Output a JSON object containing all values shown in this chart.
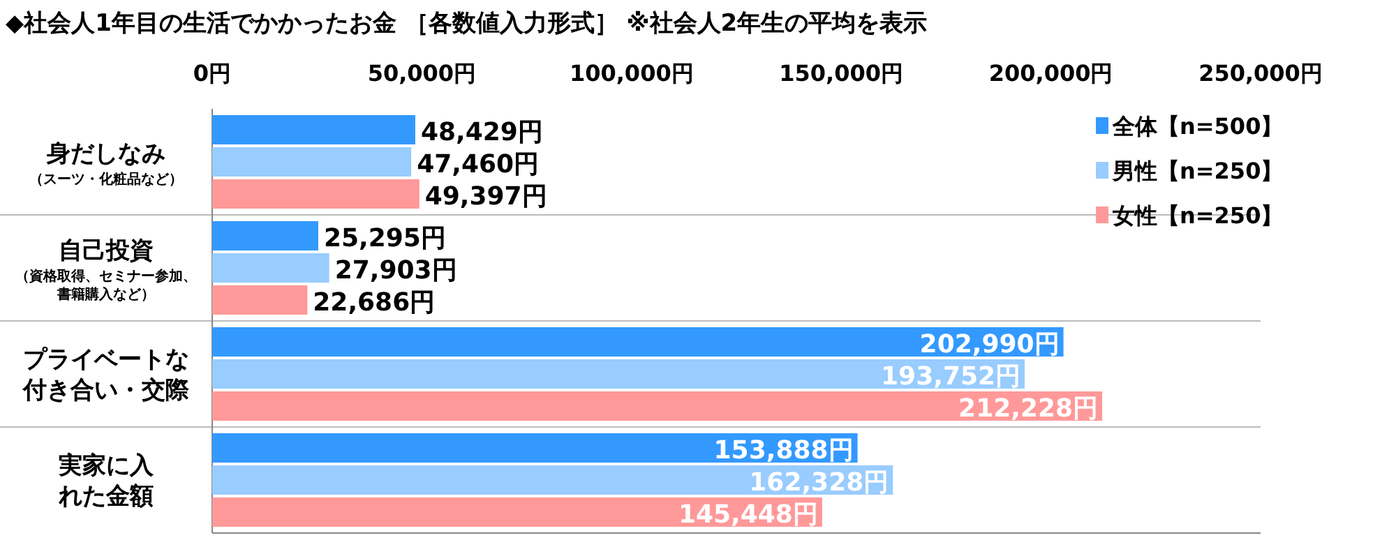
{
  "chart_data": {
    "type": "bar",
    "orientation": "horizontal",
    "title": "◆社会人1年目の生活でかかったお金 ［各数値入力形式］ ※社会人2年生の平均を表示",
    "categories": [
      "身だしなみ（スーツ・化粧品など）",
      "自己投資（資格取得、セミナー参加、書籍購入など）",
      "プライベートな付き合い・交際",
      "実家に入れた金額"
    ],
    "series": [
      {
        "name": "全体【n=500】",
        "color": "#3399ff",
        "values": [
          48429,
          25295,
          202990,
          153888
        ],
        "value_labels": [
          "48,429円",
          "25,295円",
          "202,990円",
          "153,888円"
        ]
      },
      {
        "name": "男性【n=250】",
        "color": "#99ccff",
        "values": [
          47460,
          27903,
          193752,
          162328
        ],
        "value_labels": [
          "47,460円",
          "27,903円",
          "193,752円",
          "162,328円"
        ]
      },
      {
        "name": "女性【n=250】",
        "color": "#ff9999",
        "values": [
          49397,
          22686,
          212228,
          145448
        ],
        "value_labels": [
          "49,397円",
          "22,686円",
          "212,228円",
          "145,448円"
        ]
      }
    ],
    "xlim": [
      0,
      250000
    ],
    "xticks": [
      {
        "value": 0,
        "label": "0円"
      },
      {
        "value": 50000,
        "label": "50,000円"
      },
      {
        "value": 100000,
        "label": "100,000円"
      },
      {
        "value": 150000,
        "label": "150,000円"
      },
      {
        "value": 200000,
        "label": "200,000円"
      },
      {
        "value": 250000,
        "label": "250,000円"
      }
    ],
    "legend": "top right",
    "grid": false
  }
}
